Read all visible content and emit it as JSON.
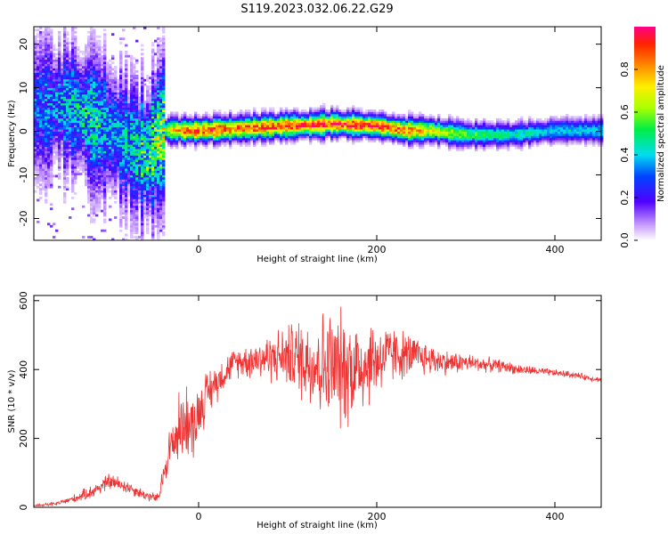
{
  "title": "S119.2023.032.06.22.G29",
  "chart_data": [
    {
      "type": "heatmap",
      "xlabel": "Height of straight line (km)",
      "ylabel": "Frequency (Hz)",
      "xlim": [
        -185,
        452
      ],
      "ylim": [
        -25,
        24
      ],
      "xticks": [
        0,
        200,
        400
      ],
      "yticks": [
        -20,
        -10,
        0,
        10,
        20
      ],
      "colorbar": {
        "label": "Normalized spectral amplitude",
        "range": [
          0,
          1
        ],
        "ticks": [
          0.0,
          0.2,
          0.4,
          0.6,
          0.8
        ],
        "tick_labels": [
          "0.0",
          "0.2",
          "0.4",
          "0.6",
          "0.8"
        ]
      },
      "ridge": {
        "description_points_x": [
          -180,
          -160,
          -140,
          -120,
          -100,
          -80,
          -60,
          -40,
          -20,
          0,
          50,
          100,
          150,
          200,
          230,
          260,
          300,
          350,
          400,
          450
        ],
        "frequency_hz": [
          5,
          6,
          5,
          2,
          0,
          -3,
          -6,
          0,
          0,
          0,
          0.5,
          1,
          1.5,
          1,
          0,
          0,
          -1,
          -1,
          0,
          0
        ],
        "amplitude": [
          0.3,
          0.35,
          0.4,
          0.45,
          0.35,
          0.4,
          0.5,
          0.6,
          0.85,
          0.9,
          0.85,
          0.9,
          0.9,
          0.9,
          0.85,
          0.7,
          0.55,
          0.45,
          0.4,
          0.4
        ]
      }
    },
    {
      "type": "line",
      "xlabel": "Height of straight line (km)",
      "ylabel": "SNR (10 * v/v)",
      "xlim": [
        -185,
        452
      ],
      "ylim": [
        0,
        615
      ],
      "xticks": [
        0,
        200,
        400
      ],
      "yticks": [
        0,
        200,
        400,
        600
      ],
      "line_color": "#ee3333",
      "series": [
        {
          "x": [
            -185,
            -160,
            -140,
            -120,
            -100,
            -80,
            -60,
            -45,
            -35,
            -25,
            -15,
            -5,
            0,
            10,
            25,
            40,
            60,
            80,
            100,
            120,
            140,
            160,
            180,
            200,
            220,
            240,
            260,
            280,
            300,
            320,
            340,
            360,
            380,
            400,
            420,
            440,
            452
          ],
          "y": [
            5,
            10,
            25,
            45,
            75,
            60,
            35,
            25,
            150,
            210,
            260,
            230,
            280,
            330,
            380,
            420,
            430,
            435,
            440,
            430,
            410,
            400,
            410,
            430,
            445,
            440,
            430,
            420,
            420,
            415,
            410,
            400,
            395,
            390,
            385,
            375,
            370
          ],
          "spread": [
            3,
            6,
            12,
            20,
            25,
            20,
            15,
            15,
            60,
            100,
            110,
            90,
            80,
            70,
            50,
            40,
            55,
            70,
            90,
            130,
            160,
            170,
            150,
            110,
            80,
            60,
            45,
            35,
            28,
            22,
            18,
            15,
            12,
            10,
            10,
            8,
            8
          ]
        }
      ]
    }
  ]
}
